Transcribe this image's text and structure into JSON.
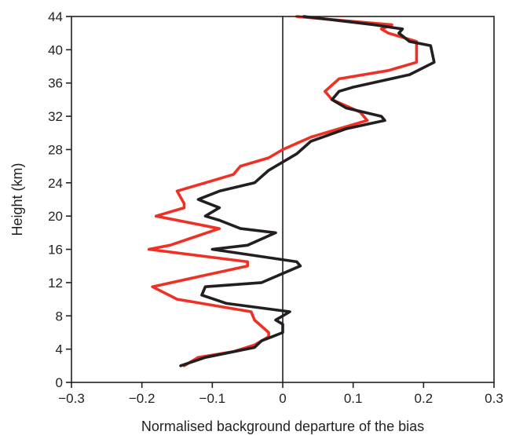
{
  "chart_data": {
    "type": "line",
    "title": "",
    "xlabel": "Normalised background departure of the bias",
    "ylabel": "Height (km)",
    "xlim": [
      -0.3,
      0.3
    ],
    "ylim": [
      0,
      44
    ],
    "x_ticks": [
      -0.3,
      -0.2,
      -0.1,
      0,
      0.1,
      0.2,
      0.3
    ],
    "x_tick_labels": [
      "−0.3",
      "−0.2",
      "−0.1",
      "0",
      "0.1",
      "0.2",
      "0.3"
    ],
    "y_ticks": [
      0,
      4,
      8,
      12,
      16,
      20,
      24,
      28,
      32,
      36,
      40,
      44
    ],
    "y_tick_labels": [
      "0",
      "4",
      "8",
      "12",
      "16",
      "20",
      "24",
      "28",
      "32",
      "36",
      "40",
      "44"
    ],
    "grid": false,
    "legend": false,
    "zero_line": 0,
    "series": [
      {
        "color": "#ee3124",
        "points": [
          [
            -0.14,
            2
          ],
          [
            -0.12,
            3
          ],
          [
            -0.07,
            3.7
          ],
          [
            -0.04,
            4.5
          ],
          [
            -0.02,
            5.5
          ],
          [
            -0.02,
            6
          ],
          [
            -0.04,
            7.5
          ],
          [
            -0.045,
            8.5
          ],
          [
            -0.15,
            10
          ],
          [
            -0.185,
            11.5
          ],
          [
            -0.05,
            14
          ],
          [
            -0.05,
            14.5
          ],
          [
            -0.19,
            16
          ],
          [
            -0.16,
            16.5
          ],
          [
            -0.09,
            18.5
          ],
          [
            -0.18,
            20
          ],
          [
            -0.14,
            21
          ],
          [
            -0.14,
            21.5
          ],
          [
            -0.15,
            23
          ],
          [
            -0.07,
            25
          ],
          [
            -0.06,
            26
          ],
          [
            -0.02,
            27
          ],
          [
            0.0,
            28
          ],
          [
            0.04,
            29.5
          ],
          [
            0.12,
            31.5
          ],
          [
            0.11,
            32.5
          ],
          [
            0.07,
            34
          ],
          [
            0.06,
            35
          ],
          [
            0.08,
            36.5
          ],
          [
            0.15,
            37.5
          ],
          [
            0.19,
            38.5
          ],
          [
            0.19,
            41
          ],
          [
            0.15,
            42
          ],
          [
            0.14,
            42.5
          ],
          [
            0.155,
            43
          ],
          [
            0.02,
            44
          ]
        ]
      },
      {
        "color": "#231f20",
        "points": [
          [
            -0.145,
            2
          ],
          [
            -0.11,
            3
          ],
          [
            -0.04,
            4.2
          ],
          [
            -0.03,
            5
          ],
          [
            -0.015,
            5.5
          ],
          [
            0.0,
            6
          ],
          [
            0.0,
            7
          ],
          [
            -0.01,
            7.5
          ],
          [
            0.01,
            8.5
          ],
          [
            -0.08,
            9.5
          ],
          [
            -0.115,
            10.5
          ],
          [
            -0.11,
            11.5
          ],
          [
            -0.03,
            12
          ],
          [
            0.025,
            14
          ],
          [
            0.02,
            14.5
          ],
          [
            -0.1,
            16
          ],
          [
            -0.05,
            16.5
          ],
          [
            -0.01,
            18
          ],
          [
            -0.06,
            18.5
          ],
          [
            -0.09,
            19.5
          ],
          [
            -0.11,
            20
          ],
          [
            -0.09,
            21
          ],
          [
            -0.12,
            22
          ],
          [
            -0.09,
            23
          ],
          [
            -0.04,
            24
          ],
          [
            -0.02,
            25.5
          ],
          [
            0.02,
            27.5
          ],
          [
            0.04,
            29
          ],
          [
            0.09,
            30.5
          ],
          [
            0.145,
            31.5
          ],
          [
            0.14,
            32
          ],
          [
            0.09,
            33
          ],
          [
            0.07,
            34
          ],
          [
            0.08,
            35
          ],
          [
            0.1,
            35.5
          ],
          [
            0.18,
            37
          ],
          [
            0.215,
            38.5
          ],
          [
            0.21,
            40.5
          ],
          [
            0.18,
            41
          ],
          [
            0.165,
            42
          ],
          [
            0.17,
            42.5
          ],
          [
            0.13,
            43
          ],
          [
            0.03,
            44
          ]
        ]
      }
    ]
  }
}
